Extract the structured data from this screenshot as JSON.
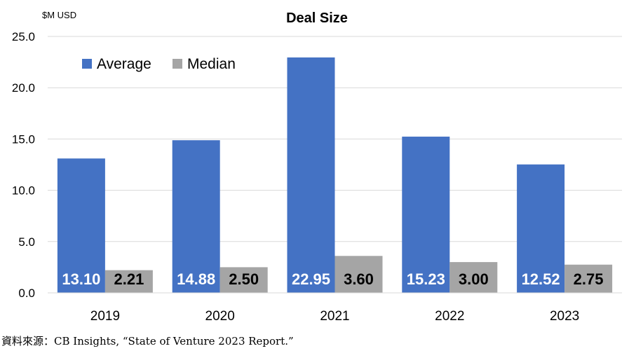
{
  "chart_data": {
    "type": "bar",
    "title": "Deal Size",
    "unit_label": "$M USD",
    "categories": [
      "2019",
      "2020",
      "2021",
      "2022",
      "2023"
    ],
    "series": [
      {
        "name": "Average",
        "values": [
          13.1,
          14.88,
          22.95,
          15.23,
          12.52
        ],
        "labels": [
          "13.10",
          "14.88",
          "22.95",
          "15.23",
          "12.52"
        ],
        "color": "#4472C4",
        "label_color": "#FFFFFF"
      },
      {
        "name": "Median",
        "values": [
          2.21,
          2.5,
          3.6,
          3.0,
          2.75
        ],
        "labels": [
          "2.21",
          "2.50",
          "3.60",
          "3.00",
          "2.75"
        ],
        "color": "#A5A5A5",
        "label_color": "#000000"
      }
    ],
    "ylim": [
      0,
      25
    ],
    "yticks": [
      "0.0",
      "5.0",
      "10.0",
      "15.0",
      "20.0",
      "25.0"
    ],
    "grid": true,
    "legend_position": "top-left"
  },
  "source": "資料來源：CB Insights, “State of Venture 2023 Report.”"
}
